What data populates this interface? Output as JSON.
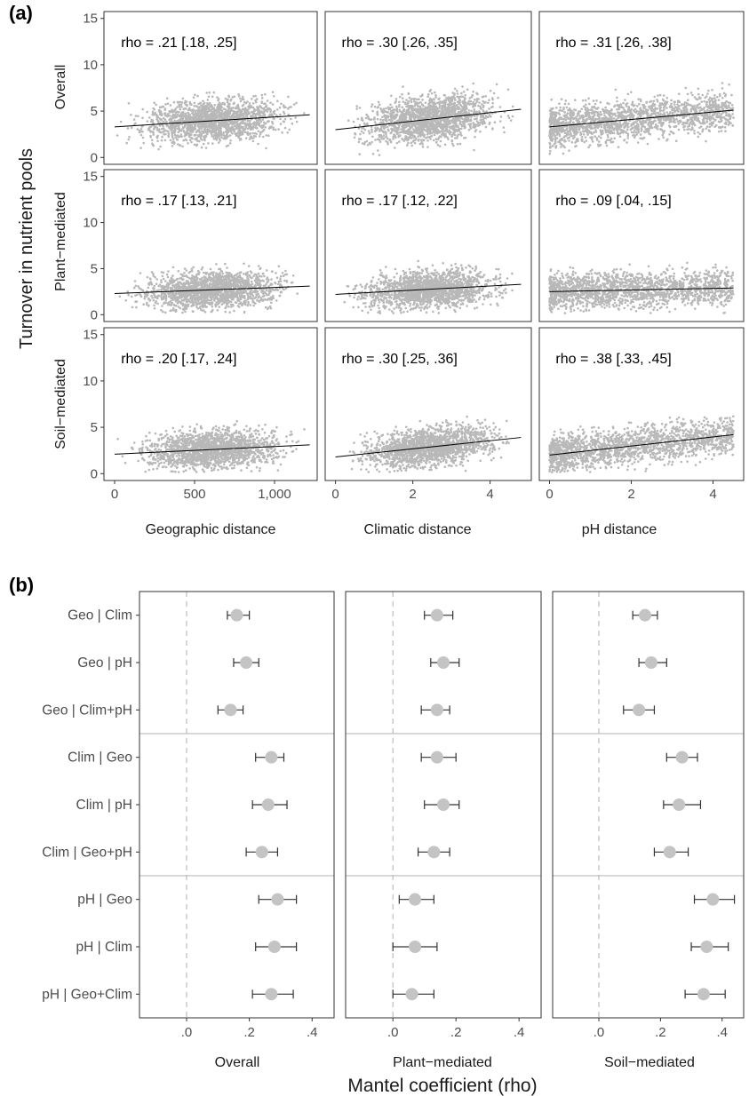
{
  "panel_a": {
    "label": "(a)",
    "y_title": "Turnover in nutrient pools",
    "row_labels": [
      "Overall",
      "Plant−mediated",
      "Soil−mediated"
    ],
    "col_labels": [
      "Geographic distance",
      "Climatic distance",
      "pH distance"
    ],
    "y_ticks": [
      "0",
      "5",
      "10",
      "15"
    ],
    "x_ticks": [
      [
        "0",
        "500",
        "1,000"
      ],
      [
        "0",
        "2",
        "4"
      ],
      [
        "0",
        "2",
        "4"
      ]
    ]
  },
  "panel_b": {
    "label": "(b)",
    "x_title": "Mantel coefficient (rho)",
    "col_labels": [
      "Overall",
      "Plant−mediated",
      "Soil−mediated"
    ],
    "x_ticks": [
      ".0",
      ".2",
      ".4"
    ],
    "row_labels": [
      "Geo | Clim",
      "Geo | pH",
      "Geo | Clim+pH",
      "Clim | Geo",
      "Clim | pH",
      "Clim | Geo+pH",
      "pH | Geo",
      "pH | Clim",
      "pH | Geo+Clim"
    ]
  },
  "chart_data": [
    {
      "type": "scatter",
      "title": "",
      "ylabel": "Turnover in nutrient pools",
      "ylim": [
        0,
        15
      ],
      "facet_rows": [
        "Overall",
        "Plant−mediated",
        "Soil−mediated"
      ],
      "facet_cols": [
        "Geographic distance",
        "Climatic distance",
        "pH distance"
      ],
      "xlim": [
        [
          0,
          1200
        ],
        [
          0,
          4.8
        ],
        [
          0,
          4.5
        ]
      ],
      "points_per_facet": 1700,
      "point_color": "#b8b8b8",
      "fit_line_color": "#000000",
      "panels": [
        {
          "row": "Overall",
          "col": "Geographic distance",
          "rho": "rho = .21 [.18, .25]",
          "x_range": [
            0,
            1220
          ],
          "y_mean": 3.9,
          "y_sd": 1.1,
          "fit": [
            [
              0,
              3.3
            ],
            [
              1220,
              4.6
            ]
          ]
        },
        {
          "row": "Overall",
          "col": "Climatic distance",
          "rho": "rho = .30 [.26, .35]",
          "x_range": [
            0,
            4.8
          ],
          "y_mean": 3.8,
          "y_sd": 1.2,
          "fit": [
            [
              0,
              3.0
            ],
            [
              4.8,
              5.2
            ]
          ]
        },
        {
          "row": "Overall",
          "col": "pH distance",
          "rho": "rho = .31 [.26, .38]",
          "x_range": [
            0,
            4.5
          ],
          "y_mean": 3.9,
          "y_sd": 1.1,
          "fit": [
            [
              0,
              3.3
            ],
            [
              4.5,
              5.1
            ]
          ]
        },
        {
          "row": "Plant−mediated",
          "col": "Geographic distance",
          "rho": "rho = .17 [.13, .21]",
          "x_range": [
            0,
            1220
          ],
          "y_mean": 2.6,
          "y_sd": 1.0,
          "fit": [
            [
              0,
              2.3
            ],
            [
              1220,
              3.1
            ]
          ]
        },
        {
          "row": "Plant−mediated",
          "col": "Climatic distance",
          "rho": "rho = .17 [.12, .22]",
          "x_range": [
            0,
            4.8
          ],
          "y_mean": 2.7,
          "y_sd": 1.0,
          "fit": [
            [
              0,
              2.2
            ],
            [
              4.8,
              3.3
            ]
          ]
        },
        {
          "row": "Plant−mediated",
          "col": "pH distance",
          "rho": "rho = .09 [.04, .15]",
          "x_range": [
            0,
            4.5
          ],
          "y_mean": 2.6,
          "y_sd": 1.0,
          "fit": [
            [
              0,
              2.5
            ],
            [
              4.5,
              2.9
            ]
          ]
        },
        {
          "row": "Soil−mediated",
          "col": "Geographic distance",
          "rho": "rho = .20 [.17, .24]",
          "x_range": [
            0,
            1220
          ],
          "y_mean": 2.5,
          "y_sd": 1.0,
          "fit": [
            [
              0,
              2.1
            ],
            [
              1220,
              3.1
            ]
          ]
        },
        {
          "row": "Soil−mediated",
          "col": "Climatic distance",
          "rho": "rho = .30 [.25, .36]",
          "x_range": [
            0,
            4.8
          ],
          "y_mean": 2.6,
          "y_sd": 1.0,
          "fit": [
            [
              0,
              1.8
            ],
            [
              4.8,
              3.9
            ]
          ]
        },
        {
          "row": "Soil−mediated",
          "col": "pH distance",
          "rho": "rho = .38 [.33, .45]",
          "x_range": [
            0,
            4.5
          ],
          "y_mean": 2.5,
          "y_sd": 1.0,
          "fit": [
            [
              0,
              2.0
            ],
            [
              4.5,
              4.2
            ]
          ]
        }
      ]
    },
    {
      "type": "scatter",
      "title": "",
      "xlabel": "Mantel coefficient (rho)",
      "xlim": [
        -0.15,
        0.47
      ],
      "x_ticks": [
        0.0,
        0.2,
        0.4
      ],
      "reference_line_x": 0,
      "point_color": "#c4c4c4",
      "categories": [
        "Geo | Clim",
        "Geo | pH",
        "Geo | Clim+pH",
        "Clim | Geo",
        "Clim | pH",
        "Clim | Geo+pH",
        "pH | Geo",
        "pH | Clim",
        "pH | Geo+Clim"
      ],
      "series": [
        {
          "name": "Overall",
          "values": [
            0.16,
            0.19,
            0.14,
            0.27,
            0.26,
            0.24,
            0.29,
            0.28,
            0.27
          ],
          "lower": [
            0.13,
            0.15,
            0.1,
            0.22,
            0.21,
            0.19,
            0.23,
            0.22,
            0.21
          ],
          "upper": [
            0.2,
            0.23,
            0.18,
            0.31,
            0.32,
            0.29,
            0.35,
            0.35,
            0.34
          ]
        },
        {
          "name": "Plant−mediated",
          "values": [
            0.14,
            0.16,
            0.14,
            0.14,
            0.16,
            0.13,
            0.07,
            0.07,
            0.06
          ],
          "lower": [
            0.1,
            0.12,
            0.09,
            0.09,
            0.1,
            0.08,
            0.02,
            0.0,
            0.0
          ],
          "upper": [
            0.19,
            0.21,
            0.18,
            0.2,
            0.21,
            0.18,
            0.13,
            0.14,
            0.13
          ]
        },
        {
          "name": "Soil−mediated",
          "values": [
            0.15,
            0.17,
            0.13,
            0.27,
            0.26,
            0.23,
            0.37,
            0.35,
            0.34
          ],
          "lower": [
            0.11,
            0.13,
            0.08,
            0.22,
            0.21,
            0.18,
            0.31,
            0.3,
            0.28
          ],
          "upper": [
            0.19,
            0.22,
            0.18,
            0.32,
            0.33,
            0.29,
            0.44,
            0.42,
            0.41
          ]
        }
      ]
    }
  ]
}
